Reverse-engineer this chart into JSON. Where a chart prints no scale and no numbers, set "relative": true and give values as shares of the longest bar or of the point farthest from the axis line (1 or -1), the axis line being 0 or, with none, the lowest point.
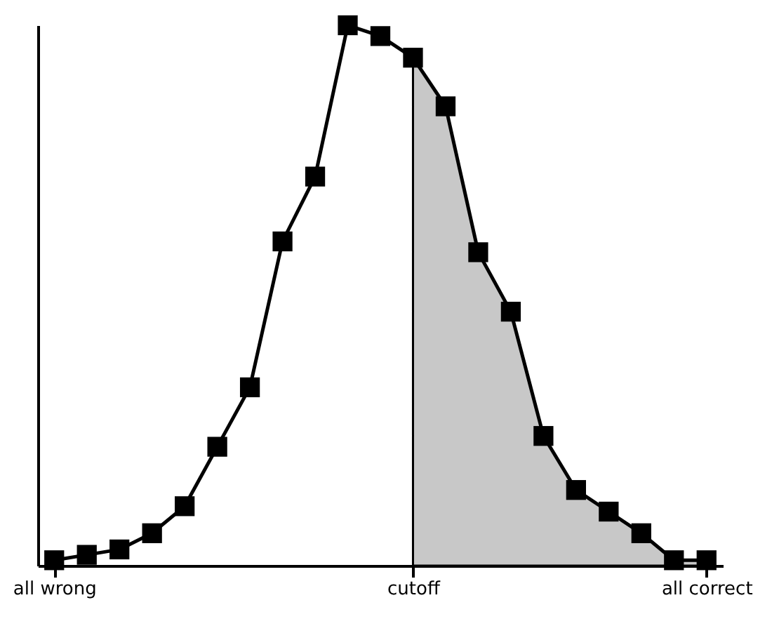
{
  "chart_data": {
    "type": "line",
    "relative": true,
    "marker": "square",
    "line_style": "solid",
    "categories": [
      "all wrong",
      null,
      null,
      null,
      null,
      null,
      null,
      null,
      null,
      null,
      null,
      "cutoff",
      null,
      null,
      null,
      null,
      null,
      null,
      null,
      null,
      "all correct"
    ],
    "series": [
      {
        "color": "#000000",
        "values": [
          0.01,
          0.02,
          0.03,
          0.06,
          0.11,
          0.22,
          0.33,
          0.6,
          0.72,
          1.0,
          0.98,
          0.94,
          0.85,
          0.58,
          0.47,
          0.24,
          0.14,
          0.1,
          0.06,
          0.01,
          0.01
        ]
      },
      {
        "type": "area",
        "marker": "none",
        "color": "#c8c8c8",
        "values": [
          null,
          null,
          null,
          null,
          null,
          null,
          null,
          null,
          null,
          null,
          null,
          0.94,
          0.85,
          0.58,
          0.47,
          0.24,
          0.14,
          0.1,
          0.06,
          0.01,
          0.01
        ]
      }
    ]
  }
}
